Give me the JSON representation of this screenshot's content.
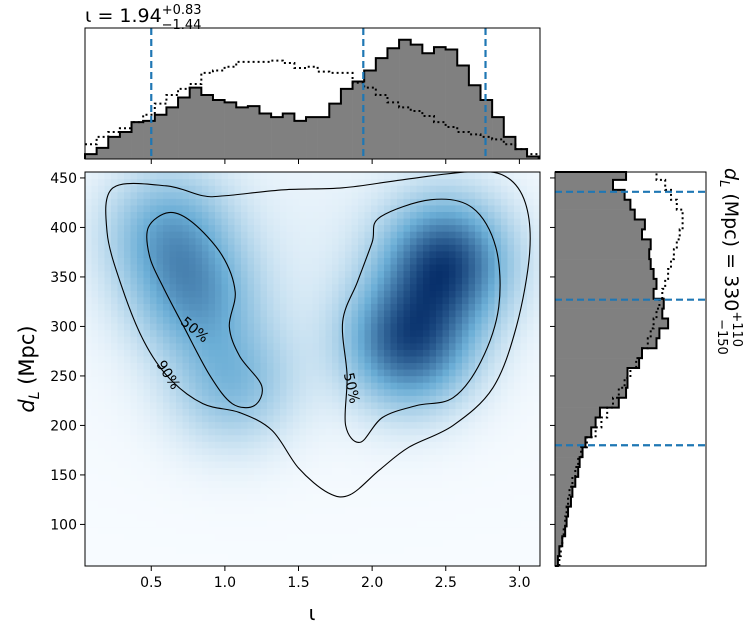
{
  "chart_data": [
    {
      "type": "heatmap",
      "panel": "joint",
      "xlabel": "ι",
      "ylabel_main": "d",
      "ylabel_sub": "L",
      "ylabel_unit": " (Mpc)",
      "xlim": [
        0.05,
        3.14
      ],
      "ylim": [
        58,
        456
      ],
      "xticks": [
        0.5,
        1.0,
        1.5,
        2.0,
        2.5,
        3.0
      ],
      "xtick_labels": [
        "0.5",
        "1.0",
        "1.5",
        "2.0",
        "2.5",
        "3.0"
      ],
      "yticks": [
        100,
        150,
        200,
        250,
        300,
        350,
        400,
        450
      ],
      "ytick_labels": [
        "100",
        "150",
        "200",
        "250",
        "300",
        "350",
        "400",
        "450"
      ],
      "colormap": "Blues",
      "density_peaks": [
        {
          "x": 2.5,
          "y": 365,
          "weight": 1.0
        },
        {
          "x": 2.25,
          "y": 285,
          "weight": 0.95
        },
        {
          "x": 0.62,
          "y": 395,
          "weight": 0.5
        },
        {
          "x": 0.8,
          "y": 330,
          "weight": 0.5
        },
        {
          "x": 1.05,
          "y": 245,
          "weight": 0.4
        }
      ],
      "contours": [
        {
          "level": "50%",
          "label": "50%",
          "paths": [
            [
              [
                0.48,
                400
              ],
              [
                0.62,
                415
              ],
              [
                0.78,
                405
              ],
              [
                0.98,
                372
              ],
              [
                1.07,
                335
              ],
              [
                1.03,
                300
              ],
              [
                1.1,
                270
              ],
              [
                1.25,
                240
              ],
              [
                1.2,
                220
              ],
              [
                1.05,
                222
              ],
              [
                0.9,
                250
              ],
              [
                0.72,
                300
              ],
              [
                0.58,
                340
              ],
              [
                0.49,
                370
              ],
              [
                0.48,
                400
              ]
            ],
            [
              [
                2.05,
                410
              ],
              [
                2.4,
                428
              ],
              [
                2.68,
                420
              ],
              [
                2.84,
                380
              ],
              [
                2.86,
                320
              ],
              [
                2.74,
                265
              ],
              [
                2.55,
                228
              ],
              [
                2.3,
                220
              ],
              [
                2.07,
                208
              ],
              [
                1.92,
                183
              ],
              [
                1.82,
                200
              ],
              [
                1.83,
                250
              ],
              [
                1.8,
                305
              ],
              [
                1.9,
                345
              ],
              [
                2.0,
                385
              ],
              [
                2.05,
                410
              ]
            ]
          ]
        },
        {
          "level": "90%",
          "label": "90%",
          "paths": [
            [
              [
                0.24,
                440
              ],
              [
                0.6,
                442
              ],
              [
                0.85,
                432
              ],
              [
                1.0,
                432
              ],
              [
                1.4,
                438
              ],
              [
                1.8,
                440
              ],
              [
                2.2,
                448
              ],
              [
                2.65,
                456
              ],
              [
                2.9,
                452
              ],
              [
                3.04,
                425
              ],
              [
                3.07,
                375
              ],
              [
                2.98,
                300
              ],
              [
                2.82,
                238
              ],
              [
                2.55,
                200
              ],
              [
                2.25,
                178
              ],
              [
                2.05,
                155
              ],
              [
                1.85,
                130
              ],
              [
                1.7,
                132
              ],
              [
                1.5,
                157
              ],
              [
                1.32,
                195
              ],
              [
                1.1,
                213
              ],
              [
                0.85,
                222
              ],
              [
                0.62,
                248
              ],
              [
                0.45,
                285
              ],
              [
                0.3,
                340
              ],
              [
                0.2,
                395
              ],
              [
                0.24,
                440
              ]
            ]
          ]
        }
      ]
    },
    {
      "type": "bar",
      "panel": "top-marginal",
      "title_main": "ι = 1.94",
      "title_sup": "+0.83",
      "title_sub": "−1.44",
      "xlim": [
        0.05,
        3.14
      ],
      "bin_edges": [
        0.05,
        0.129,
        0.208,
        0.287,
        0.366,
        0.445,
        0.524,
        0.603,
        0.682,
        0.761,
        0.84,
        0.919,
        0.998,
        1.077,
        1.156,
        1.235,
        1.314,
        1.393,
        1.472,
        1.551,
        1.63,
        1.709,
        1.788,
        1.867,
        1.946,
        2.025,
        2.104,
        2.183,
        2.262,
        2.341,
        2.42,
        2.499,
        2.578,
        2.657,
        2.736,
        2.815,
        2.894,
        2.973,
        3.052,
        3.131
      ],
      "posterior_counts": [
        0.04,
        0.09,
        0.18,
        0.22,
        0.3,
        0.31,
        0.36,
        0.42,
        0.5,
        0.58,
        0.52,
        0.48,
        0.46,
        0.42,
        0.43,
        0.37,
        0.34,
        0.37,
        0.31,
        0.34,
        0.34,
        0.45,
        0.57,
        0.63,
        0.72,
        0.82,
        0.9,
        0.97,
        0.93,
        0.86,
        0.91,
        0.89,
        0.76,
        0.6,
        0.48,
        0.34,
        0.18,
        0.08,
        0.02
      ],
      "prior_counts": [
        0.12,
        0.18,
        0.22,
        0.25,
        0.3,
        0.36,
        0.45,
        0.52,
        0.57,
        0.61,
        0.7,
        0.72,
        0.75,
        0.79,
        0.79,
        0.79,
        0.8,
        0.78,
        0.74,
        0.75,
        0.71,
        0.7,
        0.7,
        0.62,
        0.58,
        0.52,
        0.46,
        0.42,
        0.39,
        0.35,
        0.3,
        0.26,
        0.22,
        0.2,
        0.18,
        0.16,
        0.12,
        0.08,
        0.04
      ],
      "quantile_lines": [
        0.5,
        1.94,
        2.77
      ]
    },
    {
      "type": "bar",
      "orientation": "horizontal",
      "panel": "right-marginal",
      "title_main": "d",
      "title_sub_L": "L",
      "title_rest": " (Mpc) = 330",
      "title_sup": "+110",
      "title_sub": "−150",
      "ylim": [
        58,
        456
      ],
      "bin_edges": [
        58,
        68,
        78,
        88,
        98,
        108,
        118,
        128,
        138,
        148,
        158,
        168,
        178,
        188,
        198,
        208,
        218,
        228,
        238,
        248,
        258,
        268,
        278,
        288,
        298,
        308,
        318,
        328,
        338,
        348,
        358,
        368,
        378,
        388,
        398,
        408,
        418,
        428,
        438,
        448,
        456
      ],
      "posterior_counts": [
        0.02,
        0.03,
        0.05,
        0.07,
        0.08,
        0.09,
        0.11,
        0.12,
        0.14,
        0.16,
        0.17,
        0.19,
        0.21,
        0.25,
        0.28,
        0.31,
        0.44,
        0.49,
        0.5,
        0.5,
        0.58,
        0.6,
        0.7,
        0.72,
        0.78,
        0.74,
        0.75,
        0.68,
        0.7,
        0.68,
        0.66,
        0.65,
        0.66,
        0.6,
        0.62,
        0.55,
        0.52,
        0.48,
        0.4,
        0.49
      ],
      "prior_counts": [
        0.03,
        0.04,
        0.05,
        0.06,
        0.07,
        0.08,
        0.09,
        0.1,
        0.12,
        0.14,
        0.16,
        0.18,
        0.22,
        0.28,
        0.32,
        0.36,
        0.4,
        0.44,
        0.48,
        0.52,
        0.56,
        0.6,
        0.64,
        0.66,
        0.68,
        0.7,
        0.72,
        0.74,
        0.76,
        0.78,
        0.8,
        0.82,
        0.84,
        0.86,
        0.88,
        0.88,
        0.84,
        0.8,
        0.76,
        0.7
      ],
      "quantile_lines": [
        180,
        327,
        436
      ]
    }
  ],
  "colors": {
    "hist_fill": "#808080",
    "hist_edge": "#000000",
    "quantile_line": "#1f77b4",
    "contour": "#000000",
    "cmap_low": "#f7fbff",
    "cmap_mid": "#6baed6",
    "cmap_high": "#08306b"
  }
}
